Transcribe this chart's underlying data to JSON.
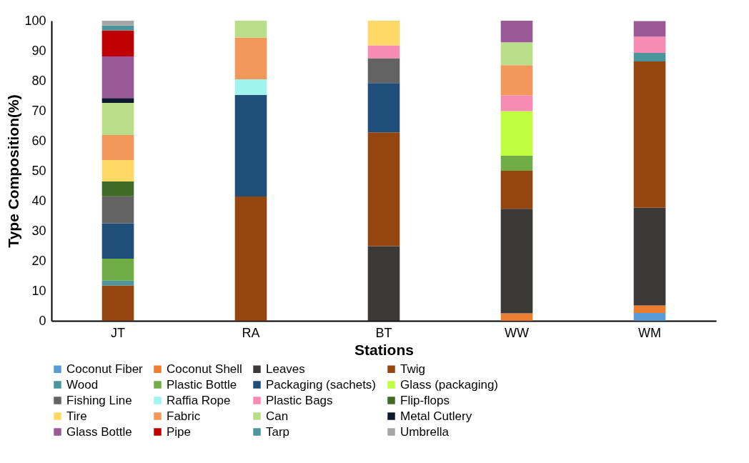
{
  "chart_data": {
    "type": "bar",
    "stacked": true,
    "xlabel": "Stations",
    "ylabel": "Type Composition(%)",
    "categories": [
      "JT",
      "RA",
      "BT",
      "WW",
      "WM"
    ],
    "ylim": [
      0,
      100
    ],
    "yticks": [
      0,
      10,
      20,
      30,
      40,
      50,
      60,
      70,
      80,
      90,
      100
    ],
    "grid": false,
    "legend": "bottom",
    "series": [
      {
        "name": "Coconut Fiber",
        "color": "#5b9bd5",
        "values": [
          null,
          null,
          null,
          null,
          2.6
        ]
      },
      {
        "name": "Coconut Shell",
        "color": "#ed7d31",
        "values": [
          null,
          null,
          null,
          2.5,
          2.5
        ]
      },
      {
        "name": "Leaves",
        "color": "#3b3838",
        "values": [
          null,
          null,
          24.9,
          34.8,
          32.6
        ]
      },
      {
        "name": "Twig",
        "color": "#954510",
        "values": [
          11.8,
          41.4,
          37.9,
          12.7,
          48.7
        ]
      },
      {
        "name": "Wood",
        "color": "#4a969c",
        "values": [
          1.6,
          null,
          null,
          null,
          2.9
        ]
      },
      {
        "name": "Plastic Bottle",
        "color": "#70ad47",
        "values": [
          7.3,
          null,
          null,
          5.0,
          null
        ]
      },
      {
        "name": "Packaging (sachets)",
        "color": "#1f4e79",
        "values": [
          11.8,
          33.9,
          16.4,
          null,
          null
        ]
      },
      {
        "name": "Glass (packaging)",
        "color": "#bfff3f",
        "values": [
          null,
          null,
          null,
          14.9,
          null
        ]
      },
      {
        "name": "Fishing Line",
        "color": "#636363",
        "values": [
          9.0,
          null,
          8.3,
          null,
          null
        ]
      },
      {
        "name": "Raffia Rope",
        "color": "#9ff5ee",
        "values": [
          null,
          5.2,
          null,
          null,
          null
        ]
      },
      {
        "name": "Plastic Bags",
        "color": "#f78bb3",
        "values": [
          null,
          null,
          4.3,
          5.2,
          5.4
        ]
      },
      {
        "name": "Flip-flops",
        "color": "#3f6b26",
        "values": [
          4.9,
          null,
          null,
          null,
          null
        ]
      },
      {
        "name": "Tire",
        "color": "#ffd966",
        "values": [
          7.2,
          null,
          8.2,
          null,
          null
        ]
      },
      {
        "name": "Fabric",
        "color": "#f4975a",
        "values": [
          8.3,
          13.9,
          null,
          10.1,
          null
        ]
      },
      {
        "name": "Can",
        "color": "#b8de8a",
        "values": [
          10.7,
          5.6,
          null,
          7.6,
          null
        ]
      },
      {
        "name": "Metal Cutlery",
        "color": "#0d1a2e",
        "values": [
          1.6,
          null,
          null,
          null,
          null
        ]
      },
      {
        "name": "Glass Bottle",
        "color": "#9a5a96",
        "values": [
          13.9,
          null,
          null,
          7.2,
          5.2
        ]
      },
      {
        "name": "Pipe",
        "color": "#c00000",
        "values": [
          8.7,
          null,
          null,
          null,
          null
        ]
      },
      {
        "name": "Tarp",
        "color": "#4a969c",
        "values": [
          1.6,
          null,
          null,
          null,
          null
        ]
      },
      {
        "name": "Umbrella",
        "color": "#a6a6a6",
        "values": [
          1.6,
          null,
          null,
          null,
          null
        ]
      }
    ]
  }
}
